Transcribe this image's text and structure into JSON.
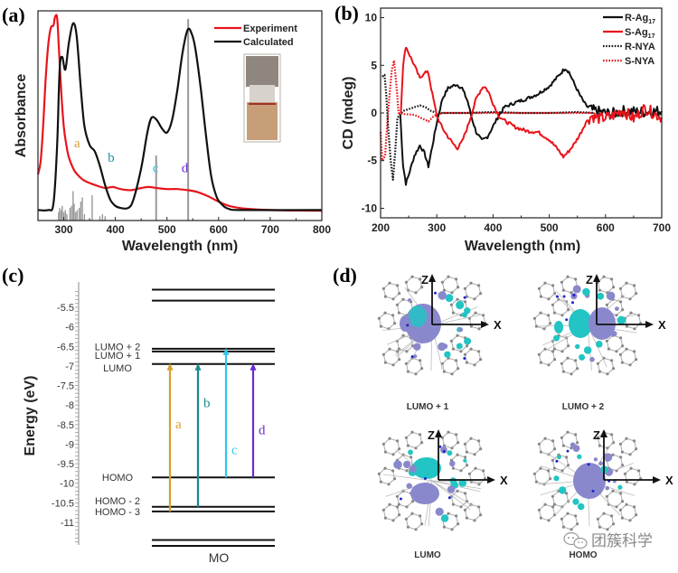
{
  "chart_data": [
    {
      "panel": "a",
      "type": "line",
      "panel_label": "(a)",
      "xlabel": "Wavelength (nm)",
      "ylabel": "Absorbance",
      "xlim": [
        250,
        800
      ],
      "ylim": [
        0,
        1
      ],
      "xticks": [
        300,
        400,
        500,
        600,
        700,
        800
      ],
      "legend": {
        "position": "top-right",
        "entries": [
          "Experiment",
          "Calculated"
        ]
      },
      "series": [
        {
          "name": "Experiment",
          "color": "#e8141c",
          "points": [
            [
              250,
              0.22
            ],
            [
              255,
              0.28
            ],
            [
              260,
              0.45
            ],
            [
              265,
              0.68
            ],
            [
              270,
              0.84
            ],
            [
              275,
              0.92
            ],
            [
              280,
              0.93
            ],
            [
              283,
              0.97
            ],
            [
              287,
              0.97
            ],
            [
              290,
              0.85
            ],
            [
              295,
              0.62
            ],
            [
              300,
              0.45
            ],
            [
              305,
              0.36
            ],
            [
              310,
              0.3
            ],
            [
              320,
              0.24
            ],
            [
              330,
              0.21
            ],
            [
              340,
              0.19
            ],
            [
              360,
              0.17
            ],
            [
              380,
              0.155
            ],
            [
              395,
              0.16
            ],
            [
              410,
              0.15
            ],
            [
              430,
              0.145
            ],
            [
              450,
              0.155
            ],
            [
              465,
              0.16
            ],
            [
              480,
              0.155
            ],
            [
              500,
              0.15
            ],
            [
              520,
              0.15
            ],
            [
              540,
              0.145
            ],
            [
              560,
              0.135
            ],
            [
              580,
              0.115
            ],
            [
              600,
              0.09
            ],
            [
              620,
              0.07
            ],
            [
              640,
              0.06
            ],
            [
              660,
              0.055
            ],
            [
              700,
              0.05
            ],
            [
              750,
              0.048
            ],
            [
              800,
              0.047
            ]
          ]
        },
        {
          "name": "Calculated",
          "color": "#111111",
          "points": [
            [
              250,
              0.05
            ],
            [
              270,
              0.05
            ],
            [
              280,
              0.08
            ],
            [
              287,
              0.35
            ],
            [
              292,
              0.72
            ],
            [
              297,
              0.78
            ],
            [
              303,
              0.72
            ],
            [
              310,
              0.85
            ],
            [
              318,
              0.94
            ],
            [
              325,
              0.88
            ],
            [
              333,
              0.63
            ],
            [
              340,
              0.45
            ],
            [
              350,
              0.36
            ],
            [
              360,
              0.33
            ],
            [
              370,
              0.26
            ],
            [
              380,
              0.17
            ],
            [
              390,
              0.1
            ],
            [
              400,
              0.07
            ],
            [
              410,
              0.06
            ],
            [
              425,
              0.06
            ],
            [
              435,
              0.1
            ],
            [
              450,
              0.25
            ],
            [
              462,
              0.42
            ],
            [
              470,
              0.49
            ],
            [
              480,
              0.48
            ],
            [
              490,
              0.44
            ],
            [
              500,
              0.42
            ],
            [
              510,
              0.48
            ],
            [
              520,
              0.62
            ],
            [
              530,
              0.8
            ],
            [
              540,
              0.91
            ],
            [
              548,
              0.89
            ],
            [
              555,
              0.82
            ],
            [
              565,
              0.64
            ],
            [
              575,
              0.42
            ],
            [
              585,
              0.22
            ],
            [
              595,
              0.12
            ],
            [
              605,
              0.08
            ],
            [
              620,
              0.055
            ],
            [
              650,
              0.05
            ],
            [
              800,
              0.05
            ]
          ]
        }
      ],
      "sticks": {
        "color": "#999999",
        "values": [
          [
            290,
            0.04
          ],
          [
            292,
            0.06
          ],
          [
            295,
            0.05
          ],
          [
            297,
            0.07
          ],
          [
            300,
            0.04
          ],
          [
            303,
            0.05
          ],
          [
            306,
            0.03
          ],
          [
            312,
            0.06
          ],
          [
            315,
            0.07
          ],
          [
            318,
            0.14
          ],
          [
            320,
            0.08
          ],
          [
            323,
            0.04
          ],
          [
            326,
            0.05
          ],
          [
            330,
            0.06
          ],
          [
            333,
            0.09
          ],
          [
            336,
            0.11
          ],
          [
            340,
            0.03
          ],
          [
            355,
            0.12
          ],
          [
            370,
            0.02
          ],
          [
            375,
            0.03
          ],
          [
            380,
            0.02
          ],
          [
            479,
            0.31
          ],
          [
            541,
            0.96
          ]
        ]
      },
      "annotations": [
        {
          "text": "a",
          "x": 320,
          "y": 0.35,
          "color": "#d9a02a"
        },
        {
          "text": "b",
          "x": 385,
          "y": 0.28,
          "color": "#2a8fa0"
        },
        {
          "text": "c",
          "x": 472,
          "y": 0.23,
          "color": "#30c8e8"
        },
        {
          "text": "d",
          "x": 528,
          "y": 0.23,
          "color": "#6a2ad0"
        }
      ],
      "inset": "vial photo"
    },
    {
      "panel": "b",
      "type": "line",
      "panel_label": "(b)",
      "xlabel": "Wavelength (nm)",
      "ylabel": "CD (mdeg)",
      "xlim": [
        200,
        700
      ],
      "ylim": [
        -11,
        11
      ],
      "xticks": [
        200,
        300,
        400,
        500,
        600,
        700
      ],
      "yticks": [
        -10,
        -5,
        0,
        5,
        10
      ],
      "legend": {
        "position": "top-right",
        "entries": [
          "R-Ag17",
          "S-Ag17",
          "R-NYA",
          "S-NYA"
        ]
      },
      "series": [
        {
          "name": "R-Ag17",
          "label_main": "R-Ag",
          "label_sub": "17",
          "color": "#111111",
          "style": "solid",
          "points": [
            [
              235,
              -0.2
            ],
            [
              240,
              -5.5
            ],
            [
              245,
              -7.4
            ],
            [
              250,
              -6.5
            ],
            [
              260,
              -4.5
            ],
            [
              270,
              -3.4
            ],
            [
              278,
              -4.2
            ],
            [
              285,
              -5.6
            ],
            [
              292,
              -3.5
            ],
            [
              300,
              -1.0
            ],
            [
              310,
              1.5
            ],
            [
              320,
              2.6
            ],
            [
              335,
              3.0
            ],
            [
              345,
              2.6
            ],
            [
              355,
              1.2
            ],
            [
              362,
              -0.5
            ],
            [
              370,
              -2.0
            ],
            [
              380,
              -2.9
            ],
            [
              390,
              -2.5
            ],
            [
              400,
              -1.4
            ],
            [
              410,
              -0.3
            ],
            [
              420,
              0.6
            ],
            [
              440,
              1.1
            ],
            [
              460,
              1.5
            ],
            [
              480,
              2.0
            ],
            [
              500,
              2.8
            ],
            [
              515,
              3.8
            ],
            [
              528,
              4.7
            ],
            [
              535,
              4.3
            ],
            [
              545,
              3.0
            ],
            [
              555,
              1.8
            ],
            [
              565,
              0.8
            ],
            [
              575,
              0.3
            ],
            [
              590,
              0.1
            ],
            [
              610,
              -0.1
            ],
            [
              630,
              0.2
            ],
            [
              660,
              0.1
            ],
            [
              700,
              0.2
            ]
          ]
        },
        {
          "name": "S-Ag17",
          "label_main": "S-Ag",
          "label_sub": "17",
          "color": "#e8141c",
          "style": "solid",
          "points": [
            [
              236,
              0.0
            ],
            [
              240,
              5.0
            ],
            [
              245,
              7.0
            ],
            [
              250,
              6.3
            ],
            [
              260,
              5.0
            ],
            [
              270,
              3.6
            ],
            [
              278,
              4.3
            ],
            [
              285,
              4.2
            ],
            [
              292,
              2.0
            ],
            [
              300,
              -0.3
            ],
            [
              310,
              -1.6
            ],
            [
              320,
              -2.5
            ],
            [
              330,
              -3.3
            ],
            [
              337,
              -3.7
            ],
            [
              345,
              -3.0
            ],
            [
              355,
              -1.4
            ],
            [
              362,
              -0.1
            ],
            [
              370,
              1.5
            ],
            [
              380,
              2.6
            ],
            [
              385,
              2.8
            ],
            [
              392,
              2.2
            ],
            [
              400,
              1.0
            ],
            [
              410,
              -0.3
            ],
            [
              420,
              -0.8
            ],
            [
              440,
              -1.5
            ],
            [
              460,
              -1.9
            ],
            [
              480,
              -2.0
            ],
            [
              500,
              -2.8
            ],
            [
              515,
              -3.8
            ],
            [
              525,
              -4.6
            ],
            [
              535,
              -4.0
            ],
            [
              545,
              -3.2
            ],
            [
              555,
              -2.2
            ],
            [
              565,
              -1.0
            ],
            [
              575,
              -0.3
            ],
            [
              590,
              -0.6
            ],
            [
              610,
              -0.4
            ],
            [
              630,
              0.3
            ],
            [
              650,
              -0.6
            ],
            [
              670,
              0.5
            ],
            [
              700,
              -0.5
            ]
          ]
        },
        {
          "name": "R-NYA",
          "label_main": "R-NYA",
          "label_sub": "",
          "color": "#111111",
          "style": "dotted",
          "points": [
            [
              203,
              3.8
            ],
            [
              207,
              4.0
            ],
            [
              210,
              2.0
            ],
            [
              214,
              -2.0
            ],
            [
              218,
              -5.0
            ],
            [
              222,
              -7.0
            ],
            [
              226,
              -4.0
            ],
            [
              230,
              -0.5
            ],
            [
              240,
              0.2
            ],
            [
              255,
              0.5
            ],
            [
              270,
              0.8
            ],
            [
              280,
              0.6
            ],
            [
              290,
              0.2
            ],
            [
              300,
              0.0
            ],
            [
              350,
              0.0
            ],
            [
              400,
              0.1
            ],
            [
              450,
              0.0
            ],
            [
              500,
              0.0
            ],
            [
              550,
              0.1
            ],
            [
              580,
              0.0
            ]
          ]
        },
        {
          "name": "S-NYA",
          "label_main": "S-NYA",
          "label_sub": "",
          "color": "#e8141c",
          "style": "dotted",
          "points": [
            [
              200,
              -2.0
            ],
            [
              203,
              -5.0
            ],
            [
              208,
              -4.5
            ],
            [
              212,
              -1.0
            ],
            [
              216,
              2.0
            ],
            [
              220,
              4.5
            ],
            [
              224,
              5.5
            ],
            [
              228,
              3.0
            ],
            [
              232,
              0.0
            ],
            [
              240,
              -0.1
            ],
            [
              260,
              -0.2
            ],
            [
              275,
              -0.6
            ],
            [
              285,
              -0.9
            ],
            [
              295,
              -0.3
            ],
            [
              310,
              0.0
            ],
            [
              350,
              0.0
            ],
            [
              400,
              0.0
            ],
            [
              450,
              0.0
            ],
            [
              500,
              0.0
            ],
            [
              550,
              0.0
            ],
            [
              580,
              0.0
            ]
          ]
        }
      ]
    },
    {
      "panel": "c",
      "type": "diagram",
      "panel_label": "(c)",
      "ylabel": "Energy (eV)",
      "xlabel": "MO",
      "ylim": [
        -11.5,
        -5.1
      ],
      "yticks": [
        -5.5,
        -6,
        -6.5,
        -7,
        -7.5,
        -8,
        -8.5,
        -9,
        -9.5,
        -10,
        -10.5,
        -11
      ],
      "levels": [
        -5.05,
        -5.33,
        -6.56,
        -6.63,
        -6.95,
        -9.85,
        -10.6,
        -10.72,
        -11.45,
        -11.6
      ],
      "level_labels": [
        {
          "text": "LUMO + 2",
          "energy": -6.5
        },
        {
          "text": "LUMO + 1",
          "energy": -6.72
        },
        {
          "text": "LUMO",
          "energy": -7.05
        },
        {
          "text": "HOMO",
          "energy": -9.85
        },
        {
          "text": "HOMO - 2",
          "energy": -10.45
        },
        {
          "text": "HOMO - 3",
          "energy": -10.72
        }
      ],
      "transitions": [
        {
          "label": "a",
          "from": "HOMO - 3",
          "from_e": -10.72,
          "to": "LUMO",
          "to_e": -6.95,
          "color": "#d9a02a"
        },
        {
          "label": "b",
          "from": "HOMO - 2",
          "from_e": -10.6,
          "to": "LUMO",
          "to_e": -6.95,
          "color": "#1a8a8c"
        },
        {
          "label": "c",
          "from": "HOMO",
          "from_e": -9.85,
          "to": "LUMO + 2",
          "to_e": -6.56,
          "color": "#30c8e8"
        },
        {
          "label": "d",
          "from": "HOMO",
          "from_e": -9.85,
          "to": "LUMO",
          "to_e": -6.95,
          "color": "#6a2ad0"
        }
      ]
    }
  ],
  "panel_d": {
    "panel_label": "(d)",
    "axis_x": "X",
    "axis_z": "Z",
    "orbitals": [
      {
        "caption": "LUMO + 1"
      },
      {
        "caption": "LUMO + 2"
      },
      {
        "caption": "LUMO"
      },
      {
        "caption": "HOMO"
      }
    ],
    "lobe_colors": {
      "positive": "#8a88cc",
      "negative": "#22c4c4"
    }
  },
  "watermark": {
    "text": "团簇科学",
    "icon": "wechat-icon"
  }
}
